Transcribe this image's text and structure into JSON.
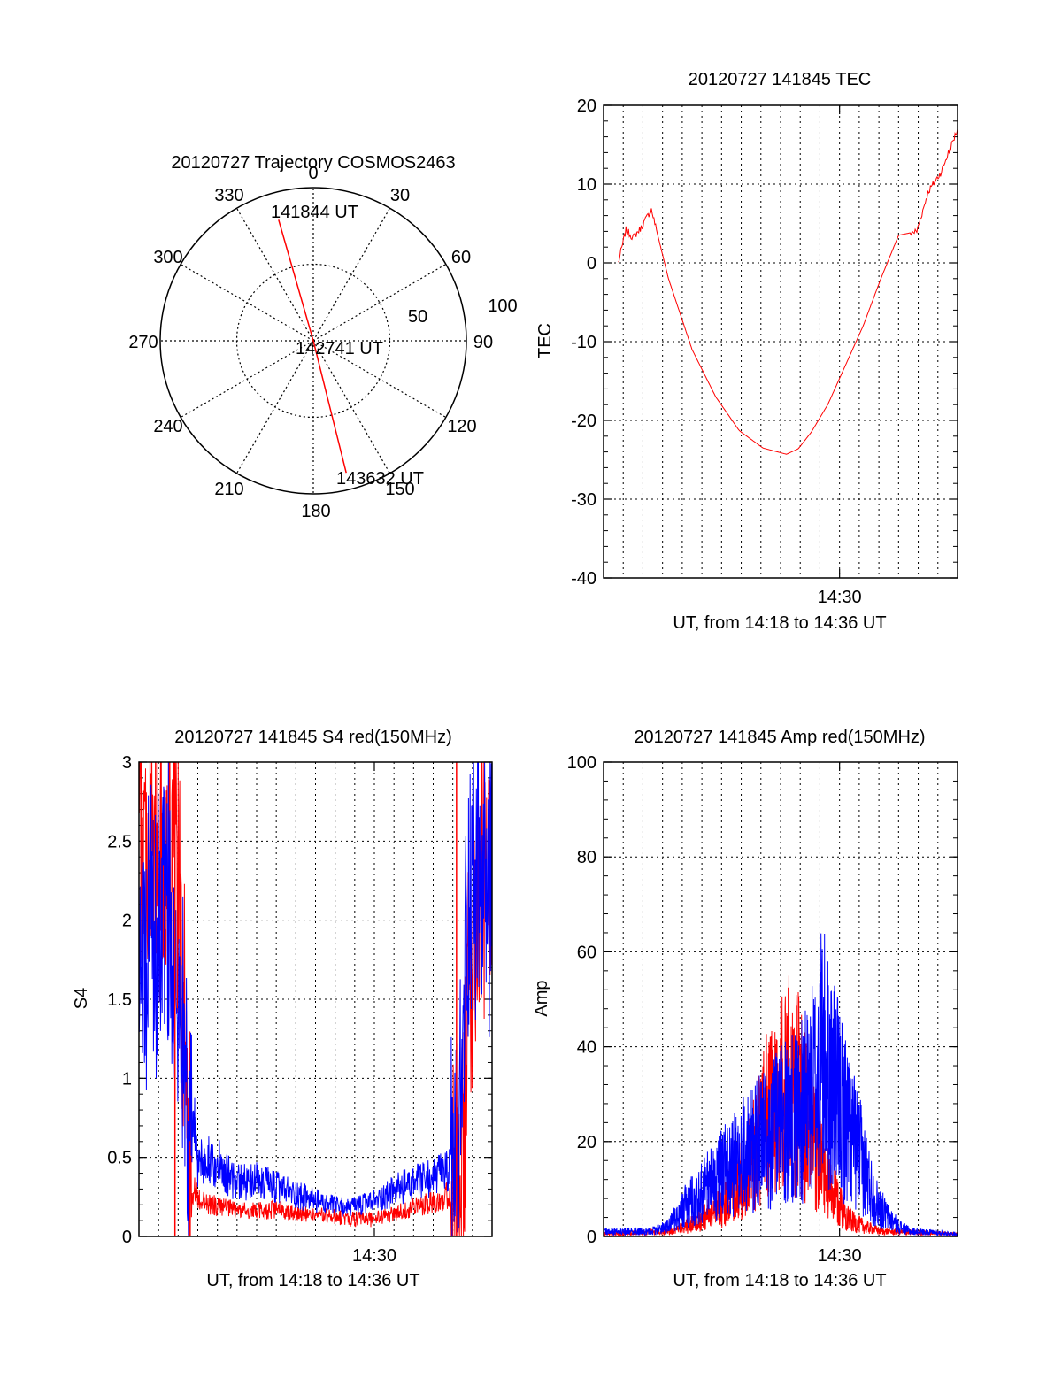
{
  "chart_data": [
    {
      "type": "polar",
      "title": "20120727 Trajectory COSMOS2463",
      "angle_labels": [
        "0",
        "30",
        "60",
        "90",
        "120",
        "150",
        "180",
        "210",
        "240",
        "270",
        "300",
        "330"
      ],
      "radial_labels": [
        "50",
        "100"
      ],
      "series": [
        {
          "color": "#ff0000",
          "points": [
            {
              "az": 344,
              "el": 16
            },
            {
              "az": 180,
              "el": 90
            },
            {
              "az": 166,
              "el": 10
            }
          ]
        }
      ],
      "annotations": [
        "141844 UT",
        "142741 UT",
        "143632 UT"
      ]
    },
    {
      "type": "line",
      "title": "20120727 141845 TEC",
      "xlabel": "UT, from 14:18 to 14:36 UT",
      "ylabel": "TEC",
      "xlim": [
        14.3,
        14.6
      ],
      "ylim": [
        -40,
        20
      ],
      "y_ticks": [
        "-40",
        "-30",
        "-20",
        "-10",
        "0",
        "10",
        "20"
      ],
      "x_tick_label": "14:30",
      "grid": true,
      "series": [
        {
          "color": "#ff0000",
          "x": [
            14.3125,
            14.319,
            14.325,
            14.332,
            14.3405,
            14.355,
            14.375,
            14.395,
            14.415,
            14.435,
            14.455,
            14.465,
            14.476,
            14.49,
            14.505,
            14.52,
            14.535,
            14.55,
            14.5655,
            14.575,
            14.586,
            14.6
          ],
          "y": [
            0,
            4.2,
            3.2,
            4.5,
            6.8,
            -2,
            -11,
            -17,
            -21.3,
            -23.5,
            -24.3,
            -23.6,
            -21.5,
            -18,
            -13,
            -8,
            -2,
            3.5,
            4,
            9,
            11.5,
            17
          ]
        }
      ]
    },
    {
      "type": "line",
      "title": "20120727 141845 S4 red(150MHz)",
      "xlabel": "UT, from 14:18 to 14:36 UT",
      "ylabel": "S4",
      "xlim": [
        14.3,
        14.6
      ],
      "ylim": [
        0,
        3
      ],
      "y_ticks": [
        "0",
        "0.5",
        "1",
        "1.5",
        "2",
        "2.5",
        "3"
      ],
      "x_tick_label": "14:30",
      "grid": true,
      "series": [
        {
          "color": "#ff0000",
          "x": [
            14.3,
            14.315,
            14.3306,
            14.3337,
            14.3368,
            14.3399,
            14.3426,
            14.346,
            14.35,
            14.36,
            14.38,
            14.4,
            14.42,
            14.44,
            14.46,
            14.48,
            14.5,
            14.52,
            14.54,
            14.56,
            14.575,
            14.58,
            14.588,
            14.6
          ],
          "y": [
            2.6,
            2.3,
            2.4,
            2.2,
            1.6,
            1.2,
            0.5,
            0.3,
            0.25,
            0.2,
            0.17,
            0.16,
            0.17,
            0.14,
            0.13,
            0.11,
            0.11,
            0.15,
            0.2,
            0.25,
            0.3,
            1.5,
            2.3,
            2.0
          ]
        },
        {
          "color": "#0000ff",
          "x": [
            14.3,
            14.305,
            14.31,
            14.315,
            14.32,
            14.325,
            14.33,
            14.3337,
            14.336,
            14.3399,
            14.3426,
            14.346,
            14.35,
            14.36,
            14.37,
            14.38,
            14.4,
            14.42,
            14.44,
            14.46,
            14.48,
            14.5,
            14.52,
            14.54,
            14.56,
            14.57,
            14.575,
            14.578,
            14.583,
            14.6
          ],
          "y": [
            2.0,
            1.5,
            2.2,
            1.8,
            2.3,
            2.1,
            1.9,
            1.7,
            1.5,
            1.2,
            0.6,
            0.75,
            0.45,
            0.5,
            0.45,
            0.35,
            0.35,
            0.3,
            0.25,
            0.2,
            0.18,
            0.22,
            0.3,
            0.35,
            0.4,
            0.45,
            1.0,
            2.0,
            2.3,
            2.1
          ]
        }
      ]
    },
    {
      "type": "line",
      "title": "20120727 141845 Amp red(150MHz)",
      "xlabel": "UT, from 14:18 to 14:36 UT",
      "ylabel": "Amp",
      "xlim": [
        14.3,
        14.6
      ],
      "ylim": [
        0,
        100
      ],
      "y_ticks": [
        "0",
        "20",
        "40",
        "60",
        "80",
        "100"
      ],
      "x_tick_label": "14:30",
      "grid": true,
      "series": [
        {
          "color": "#ff0000",
          "x": [
            14.3,
            14.36,
            14.38,
            14.4,
            14.42,
            14.44,
            14.455,
            14.465,
            14.48,
            14.49,
            14.5,
            14.51,
            14.52,
            14.535,
            14.6
          ],
          "y": [
            0.5,
            1,
            3,
            6,
            12,
            24,
            30,
            28,
            16,
            10,
            6,
            3,
            2,
            1,
            0.5
          ]
        },
        {
          "color": "#0000ff",
          "x": [
            14.3,
            14.34,
            14.355,
            14.37,
            14.385,
            14.4,
            14.42,
            14.44,
            14.455,
            14.47,
            14.48,
            14.485,
            14.49,
            14.5,
            14.51,
            14.52,
            14.53,
            14.54,
            14.55,
            14.56,
            14.6
          ],
          "y": [
            1,
            1,
            2,
            6,
            9,
            12,
            16,
            20,
            22,
            25,
            30,
            36,
            32,
            26,
            20,
            14,
            7,
            4,
            2,
            1,
            0.5
          ]
        }
      ]
    }
  ]
}
